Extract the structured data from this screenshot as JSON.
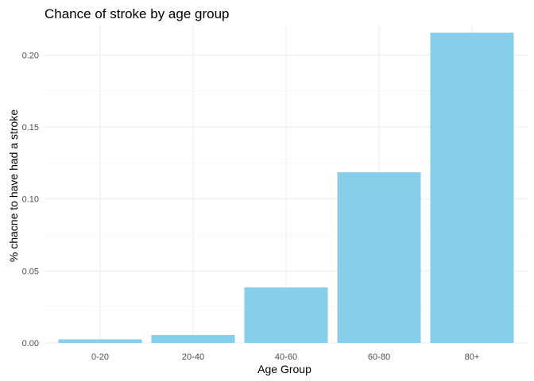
{
  "chart_data": {
    "type": "bar",
    "title": "Chance of stroke by age group",
    "xlabel": "Age Group",
    "ylabel": "% chacne to have had a stroke",
    "categories": [
      "0-20",
      "20-40",
      "40-60",
      "60-80",
      "80+"
    ],
    "values": [
      0.0025,
      0.0055,
      0.0385,
      0.1185,
      0.2155
    ],
    "ylim": [
      0,
      0.22
    ],
    "yticks": [
      0.0,
      0.05,
      0.1,
      0.15,
      0.2
    ],
    "ytick_labels": [
      "0.00",
      "0.05",
      "0.10",
      "0.15",
      "0.20"
    ],
    "bar_color": "#87CEEB",
    "grid": true,
    "legend": "none"
  }
}
